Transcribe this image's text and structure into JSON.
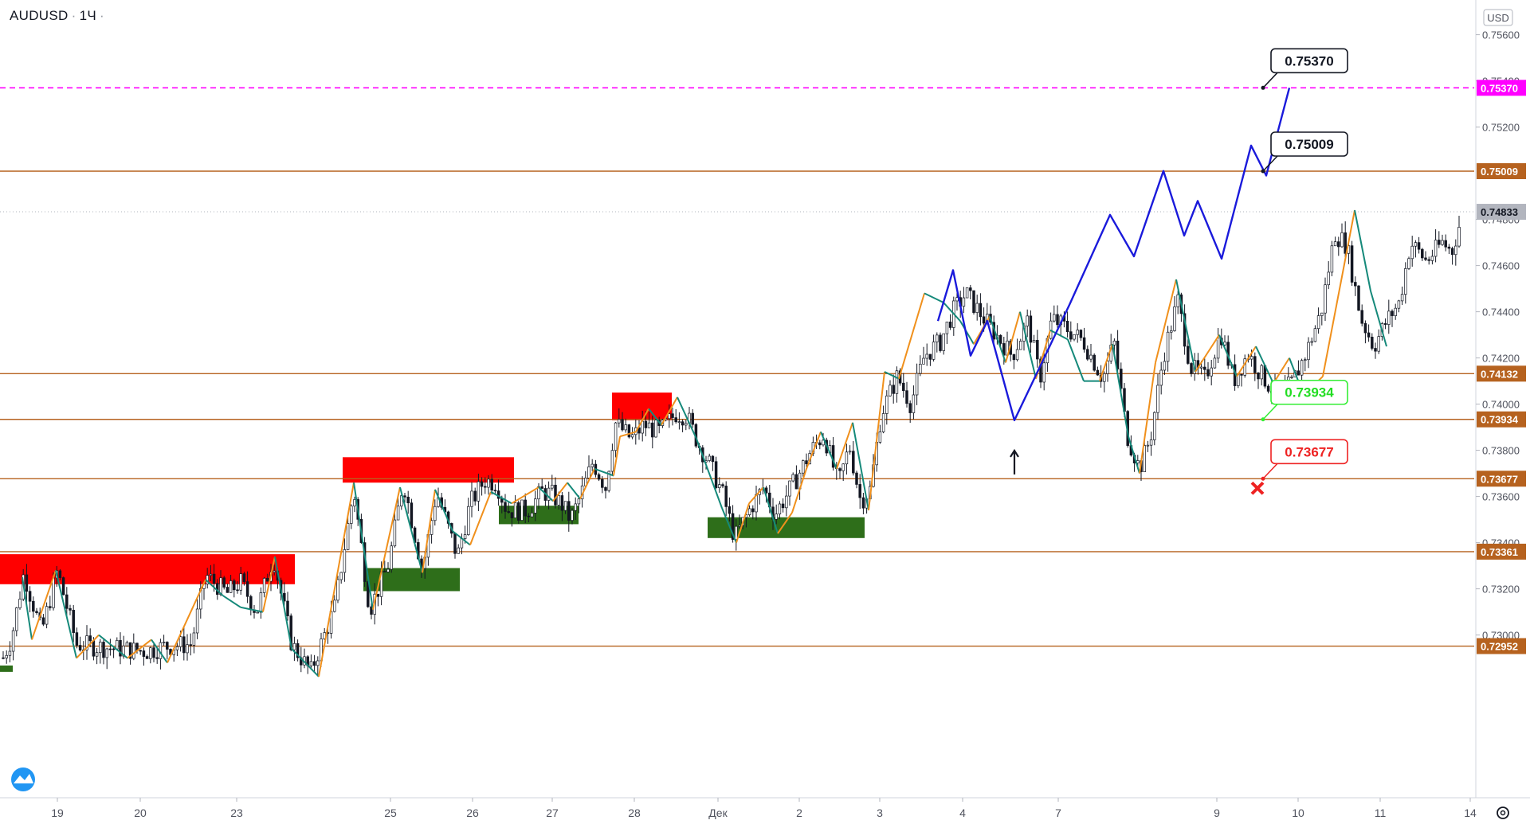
{
  "symbol": {
    "ticker": "AUDUSD",
    "interval": "1Ч"
  },
  "currency": "USD",
  "colors": {
    "level_line": "#b6621f",
    "target_line": "#ff00ff",
    "wave_forecast": "#1a1adb",
    "zigzag_up": "#f0901c",
    "zigzag_down": "#15897a",
    "supply_zone": "#ff0000",
    "demand_zone": "#2e6e1a",
    "candle": "#131722",
    "current_price_tag": "#b2b5be"
  },
  "chart_data": {
    "type": "candlestick",
    "ylim": [
      0.728,
      0.756
    ],
    "y_ticks": [
      "0.75600",
      "0.75400",
      "0.75200",
      "0.74800",
      "0.74600",
      "0.74400",
      "0.74200",
      "0.74000",
      "0.73800",
      "0.73600",
      "0.73400",
      "0.73200",
      "0.73000"
    ],
    "x_ticks": [
      "19",
      "20",
      "23",
      "25",
      "26",
      "27",
      "28",
      "Дек",
      "2",
      "3",
      "4",
      "7",
      "9",
      "10",
      "11",
      "14"
    ],
    "current_price": "0.74833",
    "levels": [
      {
        "value": 0.7537,
        "label": "0.75370",
        "style": "dashed"
      },
      {
        "value": 0.75009,
        "label": "0.75009",
        "style": "solid"
      },
      {
        "value": 0.74132,
        "label": "0.74132",
        "style": "solid"
      },
      {
        "value": 0.73934,
        "label": "0.73934",
        "style": "solid"
      },
      {
        "value": 0.73677,
        "label": "0.73677",
        "style": "solid"
      },
      {
        "value": 0.73361,
        "label": "0.73361",
        "style": "solid"
      },
      {
        "value": 0.72952,
        "label": "0.72952",
        "style": "solid"
      }
    ],
    "callouts": [
      {
        "label": "0.75370",
        "value": 0.7537,
        "style": "target"
      },
      {
        "label": "0.75009",
        "value": 0.75009,
        "style": "target"
      },
      {
        "label": "0.73934",
        "value": 0.73934,
        "style": "entry"
      },
      {
        "label": "0.73677",
        "value": 0.73677,
        "style": "stop"
      }
    ],
    "zones": [
      {
        "type": "supply",
        "from": 0.7322,
        "to": 0.7335
      },
      {
        "type": "demand",
        "from": 0.7319,
        "to": 0.7329
      },
      {
        "type": "supply",
        "from": 0.7366,
        "to": 0.7377
      },
      {
        "type": "demand",
        "from": 0.7348,
        "to": 0.7356
      },
      {
        "type": "supply",
        "from": 0.7393,
        "to": 0.7405
      },
      {
        "type": "demand",
        "from": 0.7342,
        "to": 0.7351
      }
    ],
    "forecast_path": [
      0.7436,
      0.7458,
      0.7421,
      0.7436,
      0.7393,
      0.7443,
      0.7482,
      0.7464,
      0.7501,
      0.7473,
      0.7488,
      0.7463,
      0.7512,
      0.7499,
      0.7537
    ]
  }
}
